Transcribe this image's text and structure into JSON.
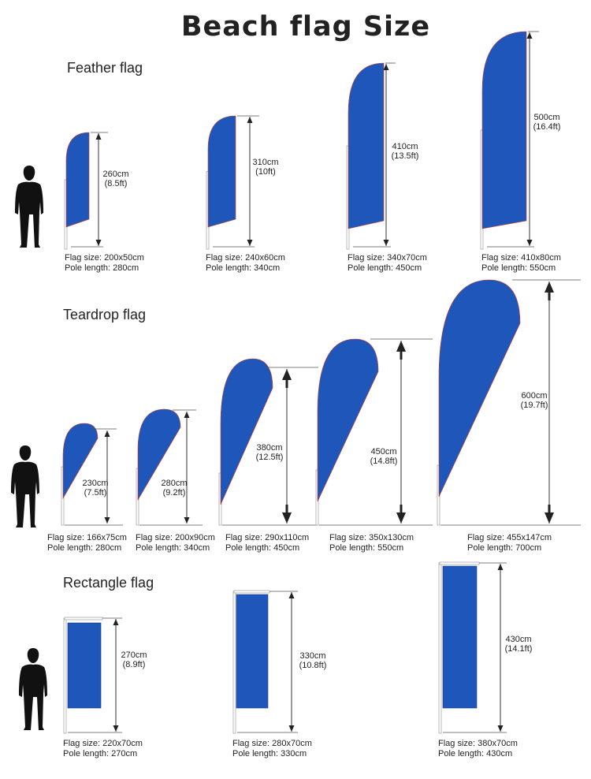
{
  "title": "Beach flag Size",
  "colors": {
    "flag": "#1f56b9",
    "flag_edge": "#d33a2a",
    "pole": "#d8d8d8",
    "silhouette": "#111111",
    "dimension_line": "#333333"
  },
  "sections": [
    {
      "heading": "Feather flag",
      "flags": [
        {
          "height": "260cm",
          "height_ft": "(8.5ft)",
          "flag_size": "Flag size: 200x50cm",
          "pole_length": "Pole length: 280cm"
        },
        {
          "height": "310cm",
          "height_ft": "(10ft)",
          "flag_size": "Flag size: 240x60cm",
          "pole_length": "Pole length: 340cm"
        },
        {
          "height": "410cm",
          "height_ft": "(13.5ft)",
          "flag_size": "Flag size: 340x70cm",
          "pole_length": "Pole length: 450cm"
        },
        {
          "height": "500cm",
          "height_ft": "(16.4ft)",
          "flag_size": "Flag size: 410x80cm",
          "pole_length": "Pole length: 550cm"
        }
      ]
    },
    {
      "heading": "Teardrop flag",
      "flags": [
        {
          "height": "230cm",
          "height_ft": "(7.5ft)",
          "flag_size": "Flag size: 166x75cm",
          "pole_length": "Pole length: 280cm"
        },
        {
          "height": "280cm",
          "height_ft": "(9.2ft)",
          "flag_size": "Flag size: 200x90cm",
          "pole_length": "Pole length: 340cm"
        },
        {
          "height": "380cm",
          "height_ft": "(12.5ft)",
          "flag_size": "Flag size: 290x110cm",
          "pole_length": "Pole length: 450cm"
        },
        {
          "height": "450cm",
          "height_ft": "(14.8ft)",
          "flag_size": "Flag size: 350x130cm",
          "pole_length": "Pole length: 550cm"
        },
        {
          "height": "600cm",
          "height_ft": "(19.7ft)",
          "flag_size": "Flag size: 455x147cm",
          "pole_length": "Pole length: 700cm"
        }
      ]
    },
    {
      "heading": "Rectangle flag",
      "flags": [
        {
          "height": "270cm",
          "height_ft": "(8.9ft)",
          "flag_size": "Flag size: 220x70cm",
          "pole_length": "Pole length: 270cm"
        },
        {
          "height": "330cm",
          "height_ft": "(10.8ft)",
          "flag_size": "Flag size: 280x70cm",
          "pole_length": "Pole length: 330cm"
        },
        {
          "height": "430cm",
          "height_ft": "(14.1ft)",
          "flag_size": "Flag size: 380x70cm",
          "pole_length": "Pole length: 430cm"
        }
      ]
    }
  ]
}
